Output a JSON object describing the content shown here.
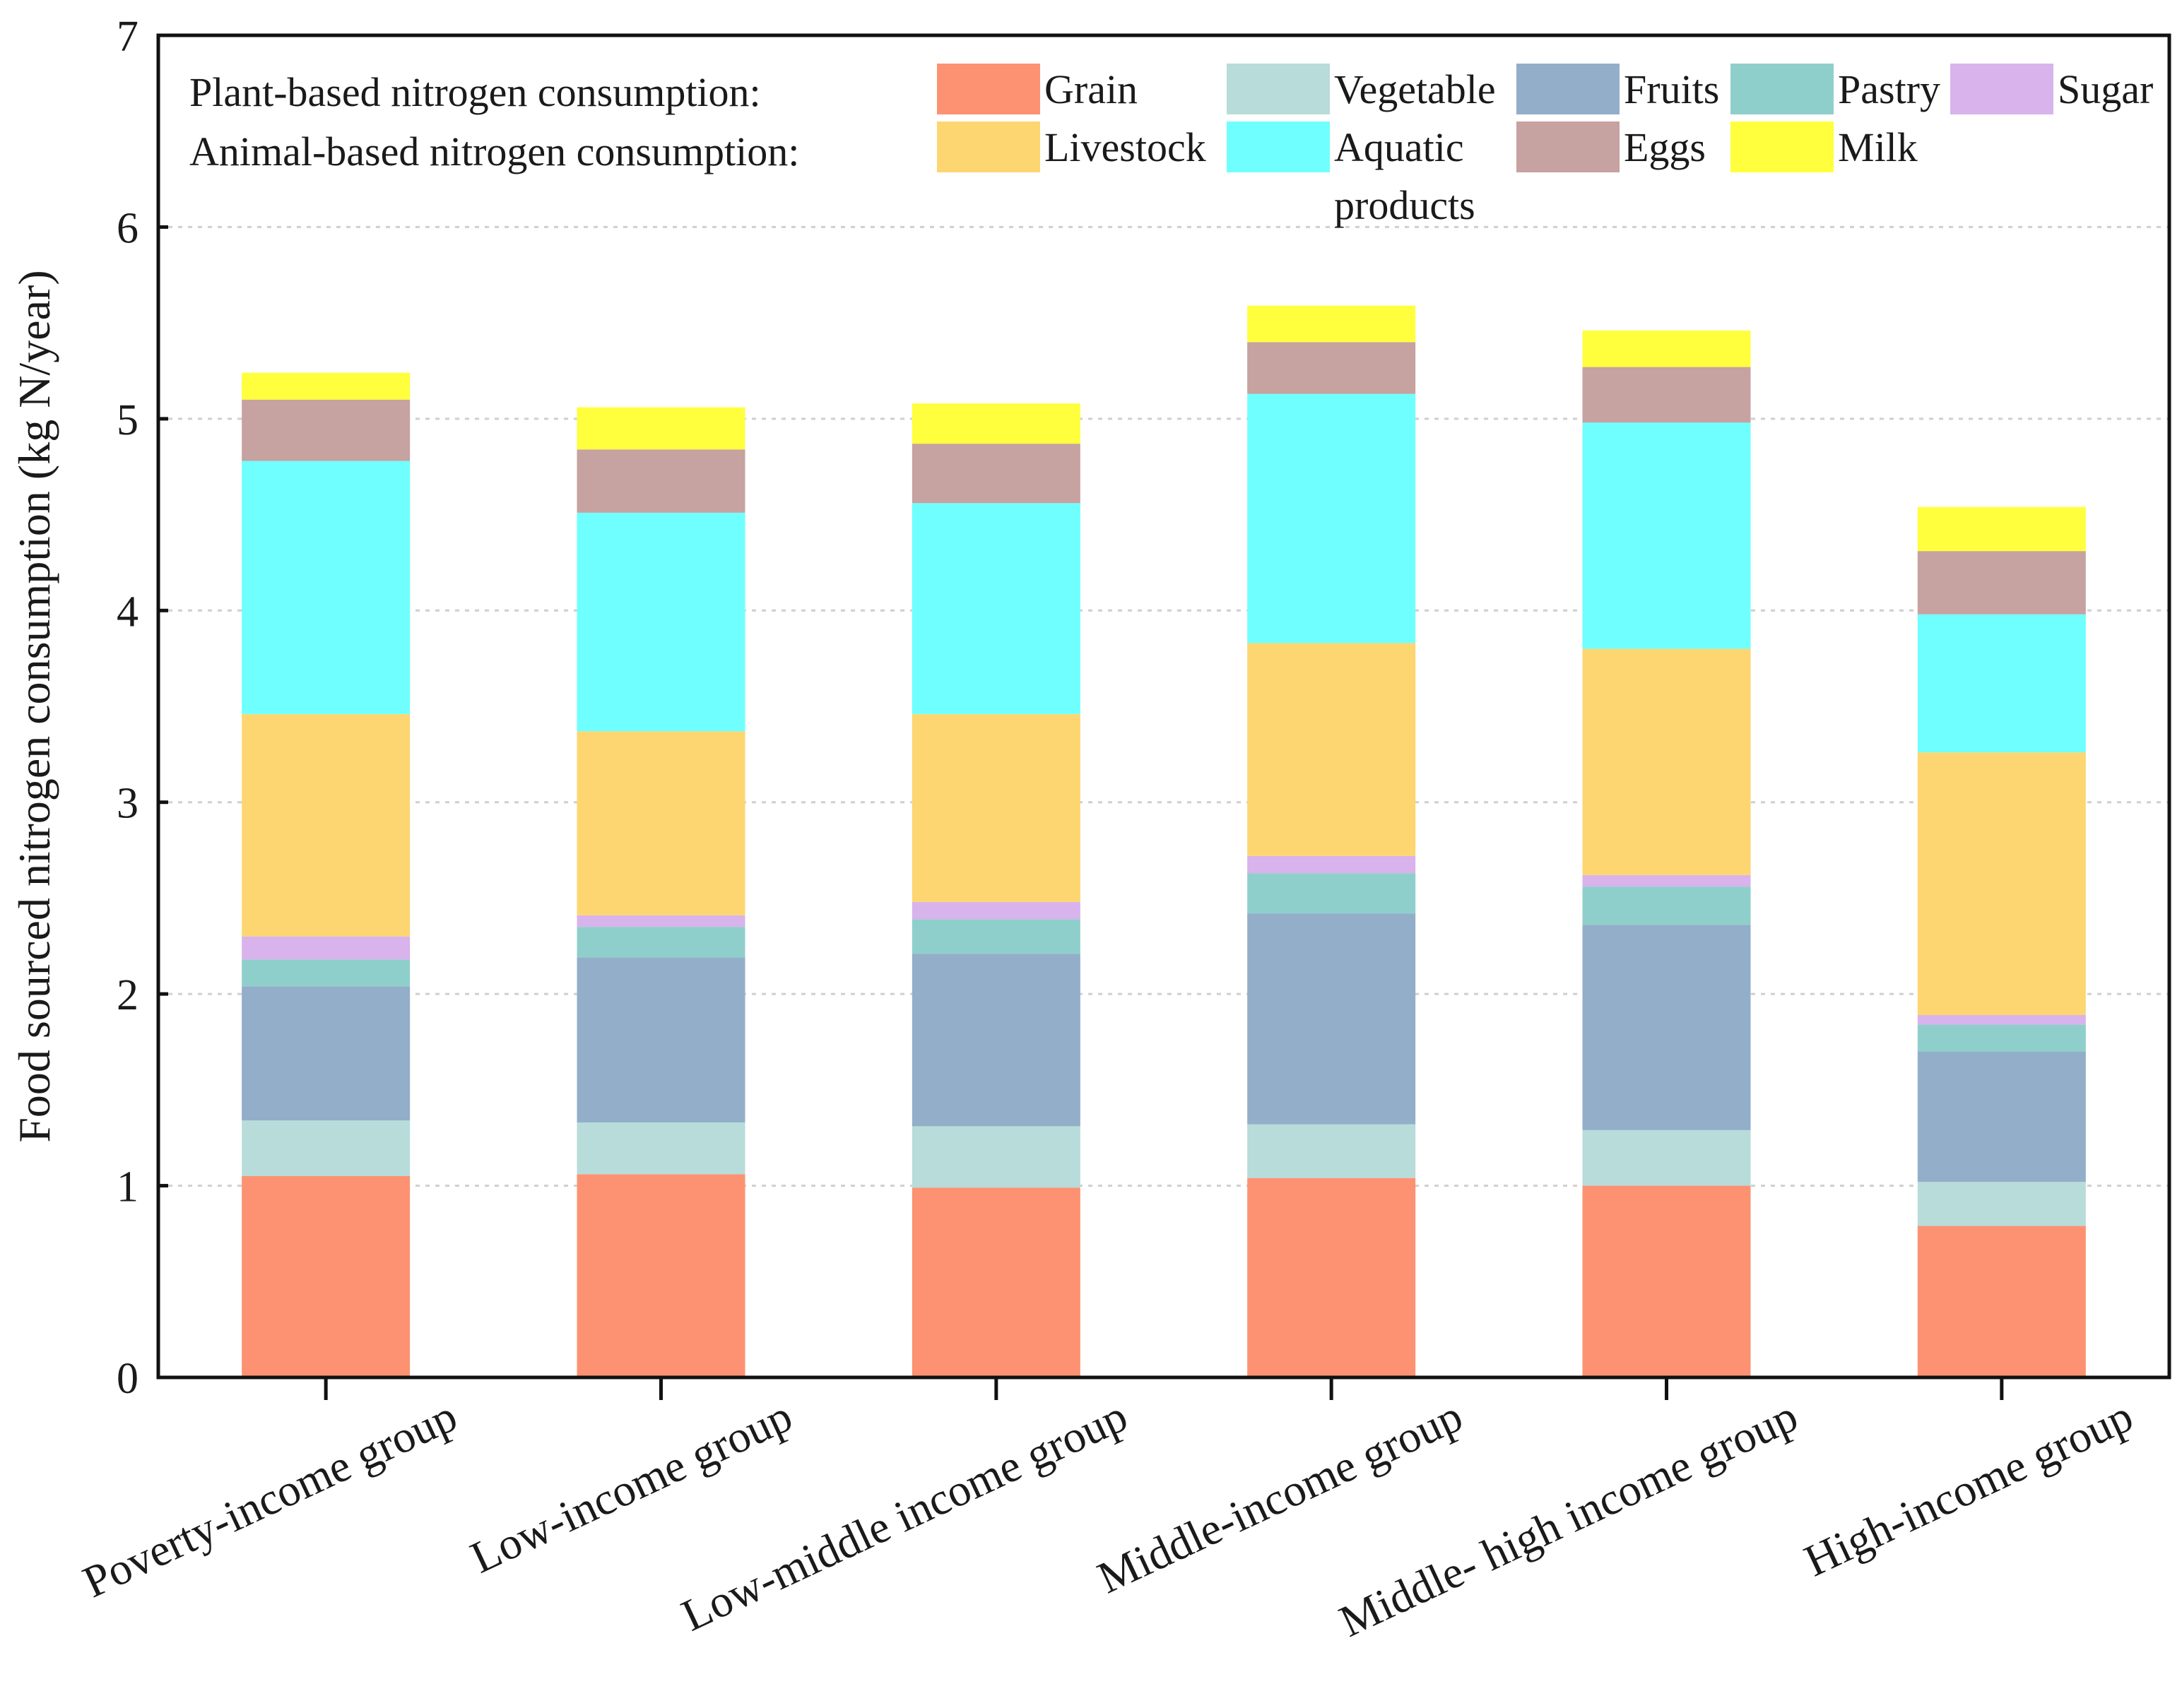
{
  "chart_data": {
    "type": "bar",
    "stacked": true,
    "title": "",
    "xlabel": "",
    "ylabel": "Food sourced nitrogen consumption (kg N/year)",
    "ylim": [
      0,
      7
    ],
    "yticks": [
      0,
      1,
      2,
      3,
      4,
      5,
      6,
      7
    ],
    "grid": true,
    "categories": [
      "Poverty-income group",
      "Low-income group",
      "Low-middle income group",
      "Middle-income group",
      "Middle- high income group",
      "High-income group"
    ],
    "legend": {
      "placement": "top",
      "plant_label": "Plant-based nitrogen consumption:",
      "animal_label": "Animal-based nitrogen consumption:"
    },
    "series": [
      {
        "name": "Grain",
        "group": "plant",
        "color": "#FC9272",
        "values": [
          1.05,
          1.06,
          0.99,
          1.04,
          1.0,
          0.79
        ]
      },
      {
        "name": "Vegetable",
        "group": "plant",
        "color": "#B7DCDA",
        "values": [
          0.29,
          0.27,
          0.32,
          0.28,
          0.29,
          0.23
        ]
      },
      {
        "name": "Fruits",
        "group": "plant",
        "color": "#93AEC9",
        "values": [
          0.7,
          0.86,
          0.9,
          1.1,
          1.07,
          0.68
        ]
      },
      {
        "name": "Pastry",
        "group": "plant",
        "color": "#8FCFCB",
        "values": [
          0.14,
          0.16,
          0.18,
          0.21,
          0.2,
          0.14
        ]
      },
      {
        "name": "Sugar",
        "group": "plant",
        "color": "#D8B3EC",
        "values": [
          0.12,
          0.06,
          0.09,
          0.09,
          0.06,
          0.05
        ]
      },
      {
        "name": "Livestock",
        "group": "animal",
        "color": "#FDD671",
        "values": [
          1.16,
          0.96,
          0.98,
          1.11,
          1.18,
          1.37
        ]
      },
      {
        "name": "Aquatic products",
        "group": "animal",
        "color": "#6FFFFF",
        "values": [
          1.32,
          1.14,
          1.1,
          1.3,
          1.18,
          0.72
        ]
      },
      {
        "name": "Eggs",
        "group": "animal",
        "color": "#C6A2A0",
        "values": [
          0.32,
          0.33,
          0.31,
          0.27,
          0.29,
          0.33
        ]
      },
      {
        "name": "Milk",
        "group": "animal",
        "color": "#FFFF3D",
        "values": [
          0.14,
          0.22,
          0.21,
          0.19,
          0.19,
          0.23
        ]
      }
    ]
  }
}
